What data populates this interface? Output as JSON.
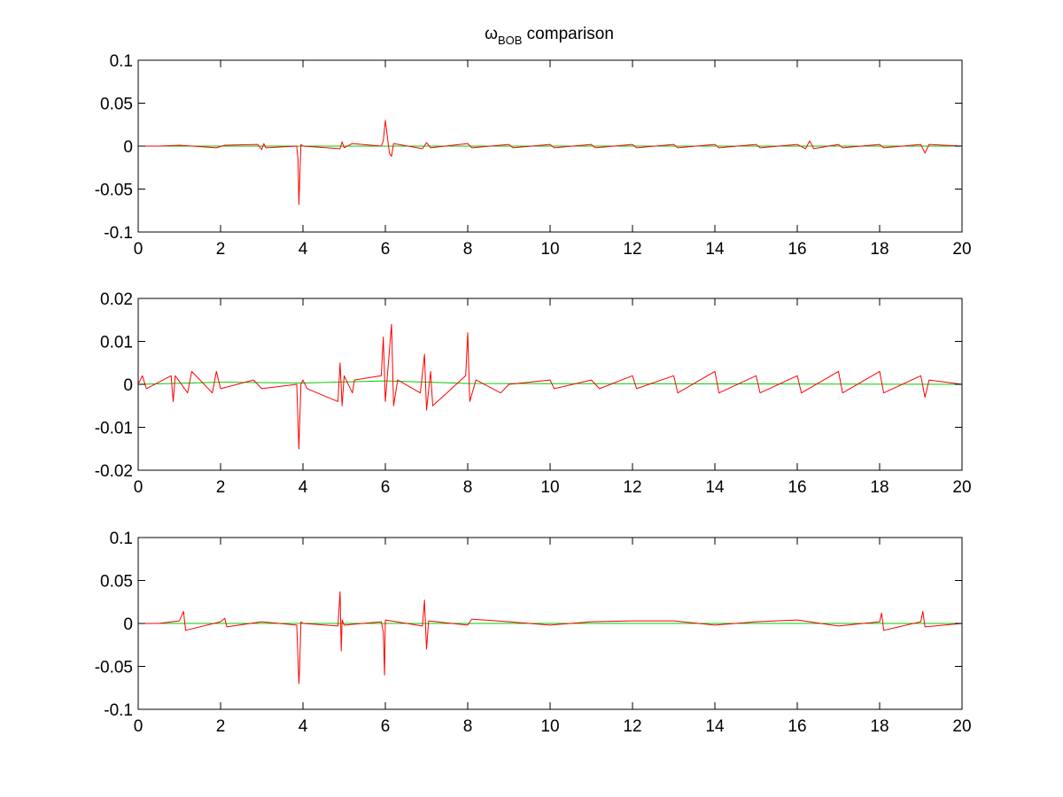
{
  "figure": {
    "title_main": "ω",
    "title_sub": "BOB",
    "title_rest": " comparison"
  },
  "colors": {
    "series_1": "#00cc00",
    "series_2": "#ff0000",
    "axes": "#000000",
    "background": "#ffffff"
  },
  "chart_data": [
    {
      "type": "line",
      "xlim": [
        0,
        20
      ],
      "ylim": [
        -0.1,
        0.1
      ],
      "xticks": [
        "0",
        "2",
        "4",
        "6",
        "8",
        "10",
        "12",
        "14",
        "16",
        "18",
        "20"
      ],
      "yticks": [
        "0.1",
        "0.05",
        "0",
        "-0.05",
        "-0.1"
      ],
      "xtick_values": [
        0,
        2,
        4,
        6,
        8,
        10,
        12,
        14,
        16,
        18,
        20
      ],
      "ytick_values": [
        0.1,
        0.05,
        0,
        -0.05,
        -0.1
      ],
      "grid": false,
      "series": [
        {
          "color": "#00cc00",
          "x": [
            0,
            20
          ],
          "y": [
            0,
            0
          ]
        },
        {
          "color": "#ff0000",
          "x": [
            0.0,
            0.5,
            1.0,
            1.9,
            2.1,
            2.9,
            3.0,
            3.05,
            3.1,
            3.85,
            3.88,
            3.9,
            3.92,
            3.95,
            4.0,
            4.9,
            4.95,
            5.0,
            5.2,
            5.9,
            5.95,
            6.0,
            6.1,
            6.15,
            6.2,
            6.9,
            7.0,
            7.1,
            8.0,
            8.1,
            9.0,
            9.1,
            10.0,
            10.1,
            11.0,
            11.1,
            12.0,
            12.1,
            13.0,
            13.1,
            14.0,
            14.1,
            15.0,
            15.1,
            16.0,
            16.2,
            16.3,
            16.4,
            17.0,
            17.1,
            18.0,
            18.1,
            19.0,
            19.1,
            19.2,
            20.0
          ],
          "y": [
            0.0,
            0.0,
            0.001,
            -0.002,
            0.001,
            0.002,
            -0.004,
            0.003,
            -0.002,
            0.0,
            -0.015,
            -0.068,
            -0.04,
            0.002,
            0.0,
            -0.003,
            0.005,
            -0.002,
            0.003,
            0.0,
            0.006,
            0.03,
            -0.008,
            -0.012,
            0.003,
            -0.003,
            0.004,
            -0.002,
            0.003,
            -0.002,
            0.002,
            -0.002,
            0.002,
            -0.002,
            0.002,
            -0.002,
            0.002,
            -0.002,
            0.002,
            -0.002,
            0.002,
            -0.002,
            0.002,
            -0.002,
            0.002,
            -0.003,
            0.006,
            -0.003,
            0.002,
            -0.002,
            0.002,
            -0.002,
            0.002,
            -0.008,
            0.002,
            0.0
          ]
        }
      ]
    },
    {
      "type": "line",
      "xlim": [
        0,
        20
      ],
      "ylim": [
        -0.02,
        0.02
      ],
      "xticks": [
        "0",
        "2",
        "4",
        "6",
        "8",
        "10",
        "12",
        "14",
        "16",
        "18",
        "20"
      ],
      "yticks": [
        "0.02",
        "0.01",
        "0",
        "-0.01",
        "-0.02"
      ],
      "xtick_values": [
        0,
        2,
        4,
        6,
        8,
        10,
        12,
        14,
        16,
        18,
        20
      ],
      "ytick_values": [
        0.02,
        0.01,
        0,
        -0.01,
        -0.02
      ],
      "grid": false,
      "series": [
        {
          "color": "#00cc00",
          "x": [
            0,
            2,
            4,
            6,
            8,
            20
          ],
          "y": [
            0.0,
            0.0005,
            0.0003,
            0.0008,
            0.0002,
            0.0
          ]
        },
        {
          "color": "#ff0000",
          "x": [
            0.0,
            0.1,
            0.2,
            0.8,
            0.85,
            0.9,
            1.2,
            1.3,
            1.8,
            1.9,
            2.0,
            2.8,
            3.0,
            3.85,
            3.9,
            3.95,
            4.0,
            4.1,
            4.85,
            4.9,
            4.95,
            5.0,
            5.2,
            5.25,
            5.9,
            5.95,
            6.0,
            6.05,
            6.15,
            6.2,
            6.3,
            6.85,
            6.95,
            7.0,
            7.1,
            7.15,
            7.95,
            8.0,
            8.05,
            8.2,
            8.8,
            9.0,
            10.0,
            10.1,
            11.0,
            11.2,
            12.0,
            12.1,
            13.0,
            13.1,
            14.0,
            14.1,
            15.0,
            15.1,
            16.0,
            16.1,
            17.0,
            17.1,
            18.0,
            18.1,
            19.0,
            19.1,
            19.2,
            20.0
          ],
          "y": [
            0.0,
            0.002,
            -0.001,
            0.002,
            -0.004,
            0.002,
            -0.002,
            0.003,
            -0.002,
            0.003,
            -0.001,
            0.001,
            -0.001,
            0.0,
            -0.015,
            0.0,
            0.001,
            -0.001,
            -0.004,
            0.005,
            -0.005,
            0.002,
            -0.002,
            0.001,
            0.002,
            0.011,
            -0.004,
            0.002,
            0.014,
            -0.005,
            0.001,
            -0.002,
            0.007,
            -0.006,
            0.003,
            -0.005,
            0.002,
            0.012,
            -0.004,
            0.001,
            -0.002,
            0.0,
            0.001,
            -0.001,
            0.001,
            -0.001,
            0.002,
            -0.001,
            0.002,
            -0.002,
            0.003,
            -0.002,
            0.002,
            -0.002,
            0.002,
            -0.002,
            0.003,
            -0.002,
            0.003,
            -0.002,
            0.002,
            -0.003,
            0.001,
            0.0
          ]
        }
      ]
    },
    {
      "type": "line",
      "xlim": [
        0,
        20
      ],
      "ylim": [
        -0.1,
        0.1
      ],
      "xticks": [
        "0",
        "2",
        "4",
        "6",
        "8",
        "10",
        "12",
        "14",
        "16",
        "18",
        "20"
      ],
      "yticks": [
        "0.1",
        "0.05",
        "0",
        "-0.05",
        "-0.1"
      ],
      "xtick_values": [
        0,
        2,
        4,
        6,
        8,
        10,
        12,
        14,
        16,
        18,
        20
      ],
      "ytick_values": [
        0.1,
        0.05,
        0,
        -0.05,
        -0.1
      ],
      "grid": false,
      "series": [
        {
          "color": "#00cc00",
          "x": [
            0,
            20
          ],
          "y": [
            0,
            0
          ]
        },
        {
          "color": "#ff0000",
          "x": [
            0.0,
            0.5,
            1.0,
            1.1,
            1.15,
            2.0,
            2.1,
            2.15,
            3.0,
            3.85,
            3.9,
            3.92,
            3.95,
            4.0,
            4.85,
            4.9,
            4.93,
            4.95,
            5.0,
            5.9,
            5.95,
            5.98,
            6.0,
            6.9,
            6.95,
            7.0,
            7.05,
            8.0,
            8.1,
            9.0,
            10.0,
            11.0,
            12.0,
            13.0,
            14.0,
            15.0,
            16.0,
            17.0,
            18.0,
            18.05,
            18.1,
            19.0,
            19.05,
            19.1,
            20.0
          ],
          "y": [
            0.0,
            0.0,
            0.003,
            0.014,
            -0.008,
            0.002,
            0.006,
            -0.004,
            0.002,
            -0.002,
            -0.07,
            -0.05,
            0.002,
            0.0,
            -0.003,
            0.037,
            -0.032,
            0.004,
            -0.002,
            0.002,
            -0.01,
            -0.06,
            0.004,
            -0.003,
            0.027,
            -0.03,
            0.003,
            -0.002,
            0.005,
            0.002,
            -0.002,
            0.002,
            0.003,
            0.003,
            -0.002,
            0.002,
            0.004,
            -0.003,
            0.002,
            0.012,
            -0.008,
            0.002,
            0.014,
            -0.004,
            0.0
          ]
        }
      ]
    }
  ]
}
